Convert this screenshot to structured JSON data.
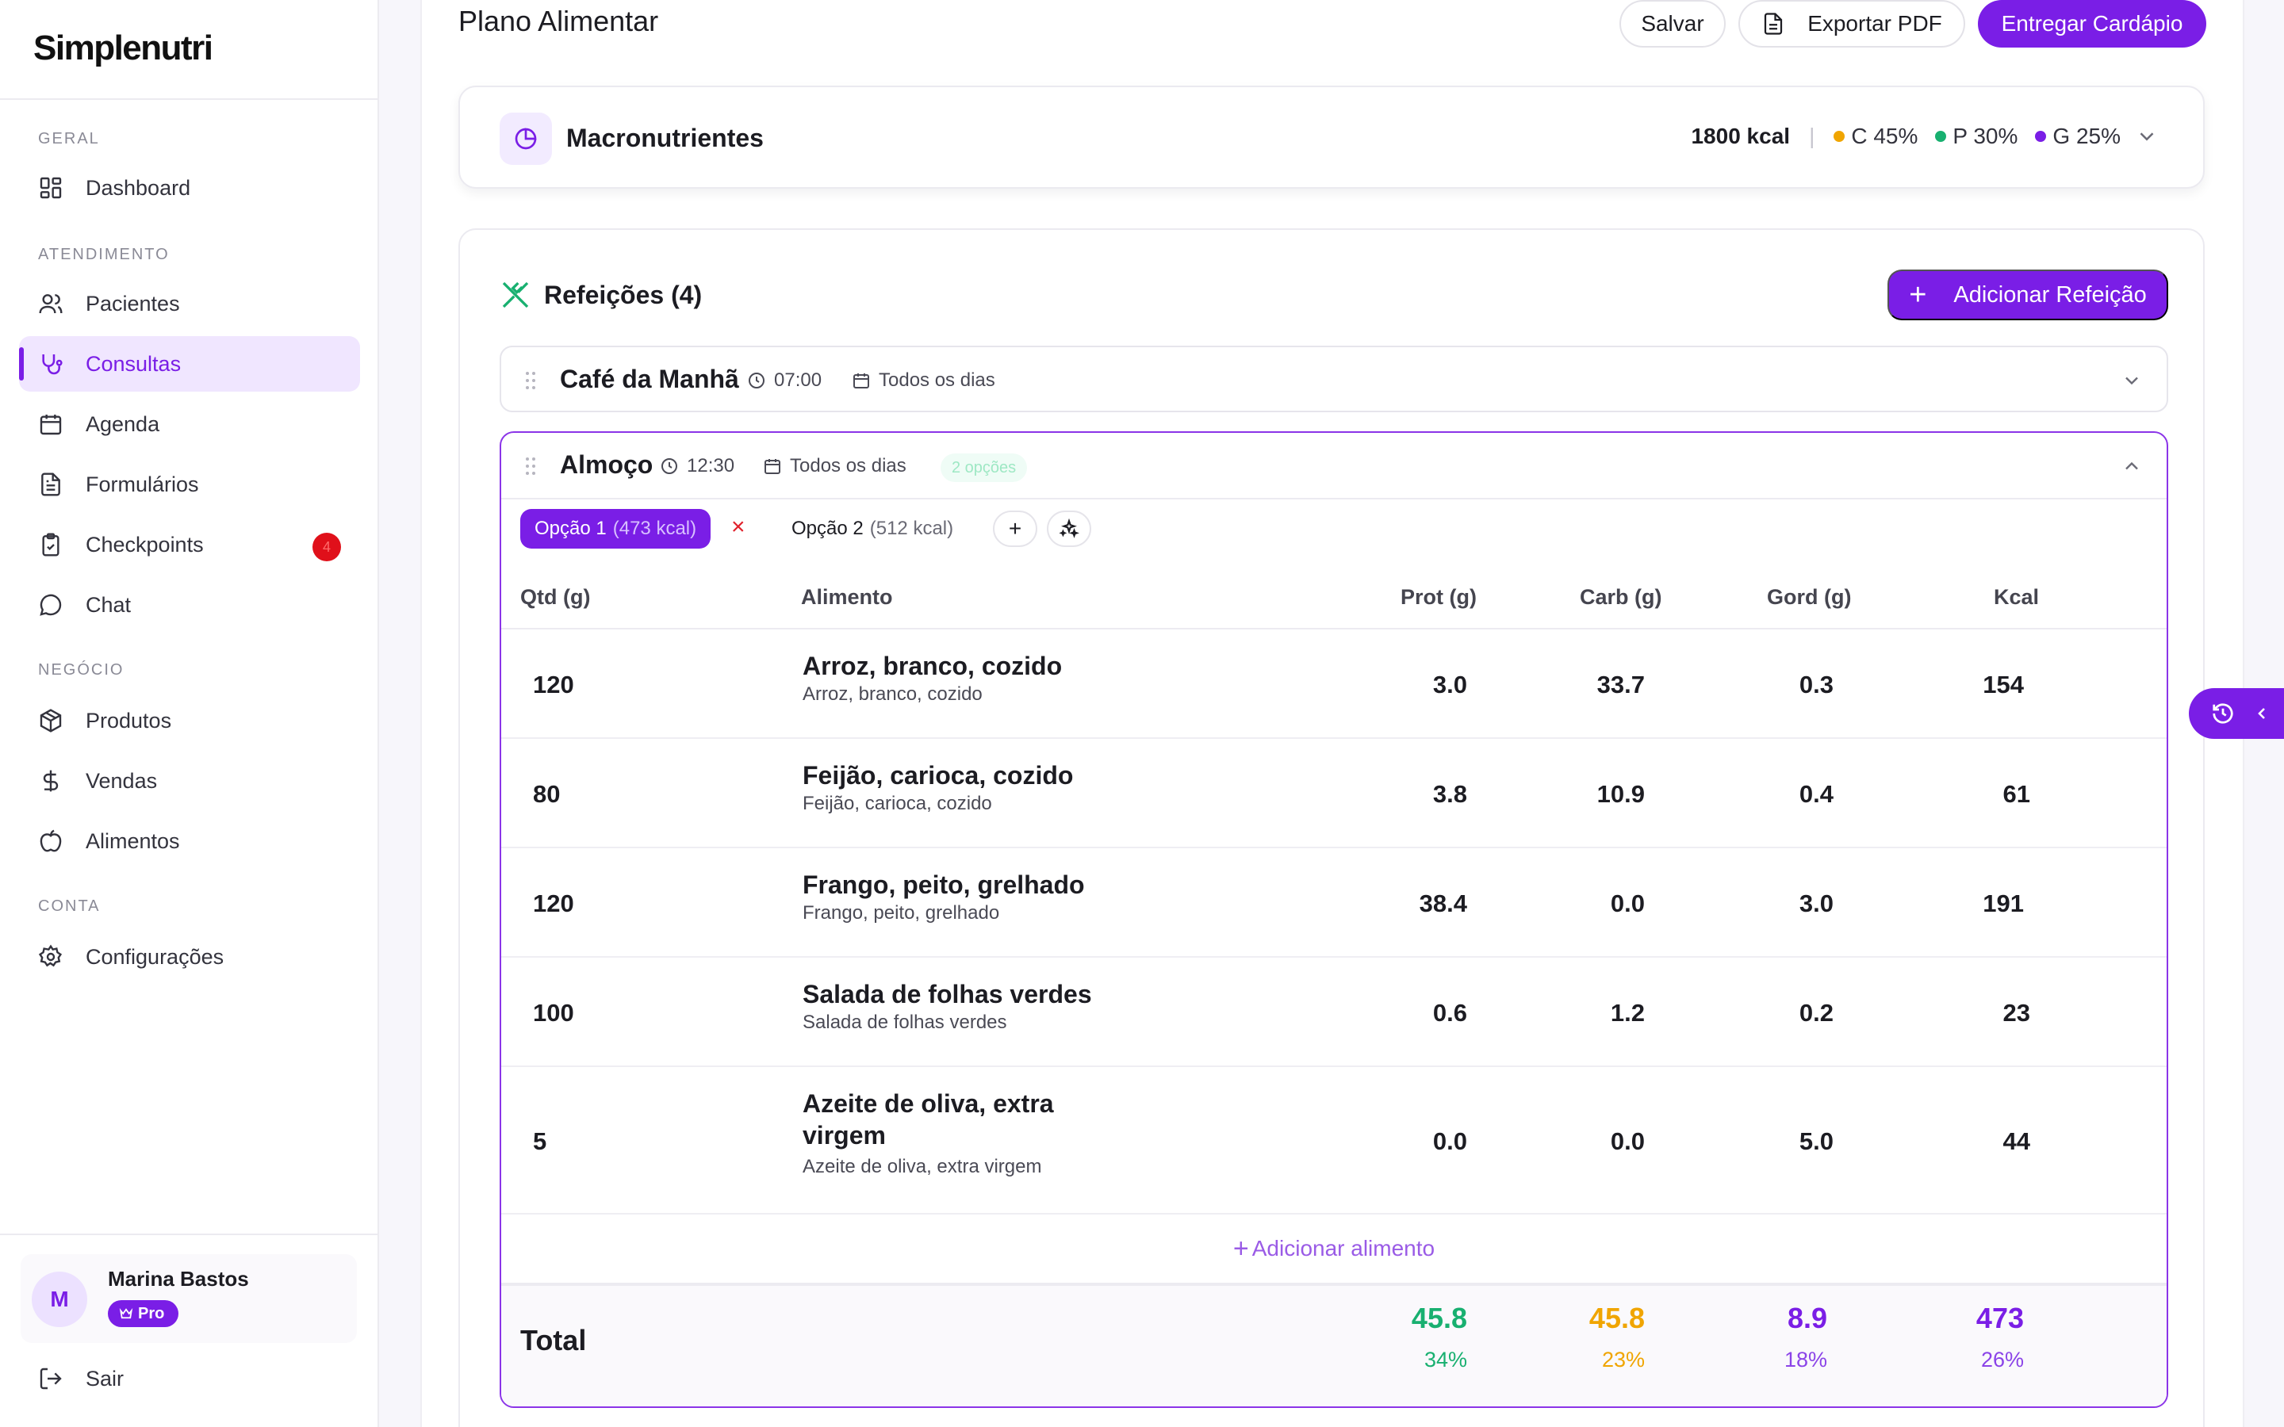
{
  "app": {
    "logo": "Simplenutri"
  },
  "sidebar": {
    "sections": {
      "geral": "GERAL",
      "atendimento": "ATENDIMENTO",
      "negocio": "NEGÓCIO",
      "conta": "CONTA"
    },
    "items": [
      {
        "label": "Dashboard",
        "icon": "dashboard-icon"
      },
      {
        "label": "Pacientes",
        "icon": "users-icon"
      },
      {
        "label": "Consultas",
        "icon": "stethoscope-icon",
        "active": true
      },
      {
        "label": "Agenda",
        "icon": "calendar-icon"
      },
      {
        "label": "Formulários",
        "icon": "file-text-icon"
      },
      {
        "label": "Checkpoints",
        "icon": "clipboard-check-icon",
        "badge": "4"
      },
      {
        "label": "Chat",
        "icon": "chat-icon"
      },
      {
        "label": "Produtos",
        "icon": "package-icon"
      },
      {
        "label": "Vendas",
        "icon": "dollar-icon"
      },
      {
        "label": "Alimentos",
        "icon": "apple-icon"
      },
      {
        "label": "Configurações",
        "icon": "gear-icon"
      }
    ],
    "user": {
      "initial": "M",
      "name": "Marina Bastos",
      "plan": "Pro"
    },
    "logout_label": "Sair"
  },
  "header": {
    "title": "Plano Alimentar",
    "save_label": "Salvar",
    "export_label": "Exportar PDF",
    "deliver_label": "Entregar Cardápio"
  },
  "macros": {
    "title": "Macronutrientes",
    "kcal": "1800 kcal",
    "separator": "|",
    "carb": "C 45%",
    "prot": "P 30%",
    "fat": "G 25%",
    "colors": {
      "carb": "#f0a500",
      "prot": "#18b070",
      "fat": "#7a1ee6"
    }
  },
  "meals": {
    "title": "Refeições (4)",
    "add_label": "Adicionar Refeição",
    "breakfast": {
      "name": "Café da Manhã",
      "time": "07:00",
      "days": "Todos os dias"
    },
    "lunch": {
      "name": "Almoço",
      "time": "12:30",
      "days": "Todos os dias",
      "options_badge": "2 opções",
      "option1": {
        "label": "Opção 1",
        "kcal": "(473 kcal)"
      },
      "option1_close": "×",
      "option2": {
        "label": "Opção 2",
        "kcal": "(512 kcal)"
      },
      "add_option": "+",
      "columns": {
        "qty": "Qtd (g)",
        "food": "Alimento",
        "prot": "Prot (g)",
        "carb": "Carb (g)",
        "fat": "Gord (g)",
        "kcal": "Kcal"
      },
      "foods": [
        {
          "qty": "120",
          "name": "Arroz, branco, cozido",
          "sub": "Arroz, branco, cozido",
          "prot": "3.0",
          "carb": "33.7",
          "fat": "0.3",
          "kcal": "154"
        },
        {
          "qty": "80",
          "name": "Feijão, carioca, cozido",
          "sub": "Feijão, carioca, cozido",
          "prot": "3.8",
          "carb": "10.9",
          "fat": "0.4",
          "kcal": "61"
        },
        {
          "qty": "120",
          "name": "Frango, peito, grelhado",
          "sub": "Frango, peito, grelhado",
          "prot": "38.4",
          "carb": "0.0",
          "fat": "3.0",
          "kcal": "191"
        },
        {
          "qty": "100",
          "name": "Salada de folhas verdes",
          "sub": "Salada de folhas verdes",
          "prot": "0.6",
          "carb": "1.2",
          "fat": "0.2",
          "kcal": "23"
        },
        {
          "qty": "5",
          "name": "Azeite de oliva, extra virgem",
          "sub": "Azeite de oliva, extra virgem",
          "prot": "0.0",
          "carb": "0.0",
          "fat": "5.0",
          "kcal": "44"
        }
      ],
      "add_food_plus": "+",
      "add_food_label": "Adicionar alimento",
      "total": {
        "label": "Total",
        "prot": "45.8",
        "prot_pct": "34%",
        "carb": "45.8",
        "carb_pct": "23%",
        "fat": "8.9",
        "fat_pct": "18%",
        "kcal": "473",
        "kcal_pct": "26%"
      }
    }
  }
}
